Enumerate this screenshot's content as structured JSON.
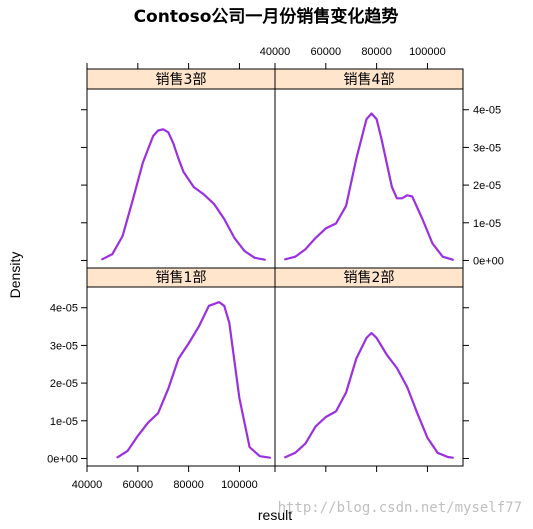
{
  "chart_data": {
    "type": "density-lattice",
    "title": "Contoso公司一月份销售变化趋势",
    "xlabel": "result",
    "ylabel": "Density",
    "xlim": [
      40000,
      114000
    ],
    "ylim": [
      -2e-06,
      4.55e-05
    ],
    "x_ticks": [
      40000,
      60000,
      80000,
      100000
    ],
    "x_tick_labels": [
      "40000",
      "60000",
      "80000",
      "100000"
    ],
    "y_ticks": [
      0,
      1e-05,
      2e-05,
      3e-05,
      4e-05
    ],
    "y_tick_labels": [
      "0e+00",
      "1e-05",
      "2e-05",
      "3e-05",
      "4e-05"
    ],
    "line_color": "#9b30e0",
    "strip_color": "#ffe5cc",
    "panels": [
      {
        "label": "销售3部",
        "position": "top-left",
        "x": [
          46000,
          50000,
          54000,
          58000,
          62000,
          66000,
          68000,
          70000,
          72000,
          74000,
          76000,
          78000,
          82000,
          86000,
          90000,
          94000,
          98000,
          102000,
          106000,
          110000
        ],
        "y": [
          3e-07,
          1.7e-06,
          6.5e-06,
          1.6e-05,
          2.6e-05,
          3.3e-05,
          3.45e-05,
          3.48e-05,
          3.4e-05,
          3.1e-05,
          2.7e-05,
          2.35e-05,
          1.95e-05,
          1.75e-05,
          1.5e-05,
          1.1e-05,
          6e-06,
          2.5e-06,
          7e-07,
          2e-07
        ]
      },
      {
        "label": "销售4部",
        "position": "top-right",
        "x": [
          44000,
          48000,
          52000,
          56000,
          60000,
          64000,
          68000,
          72000,
          76000,
          78000,
          80000,
          82000,
          86000,
          88000,
          90000,
          92000,
          94000,
          98000,
          102000,
          106000,
          110000
        ],
        "y": [
          3e-07,
          1e-06,
          3e-06,
          6e-06,
          8.5e-06,
          9.8e-06,
          1.45e-05,
          2.7e-05,
          3.75e-05,
          3.9e-05,
          3.75e-05,
          3.2e-05,
          1.95e-05,
          1.65e-05,
          1.65e-05,
          1.73e-05,
          1.7e-05,
          1.1e-05,
          4.5e-06,
          1e-06,
          2e-07
        ]
      },
      {
        "label": "销售1部",
        "position": "bottom-left",
        "x": [
          52000,
          56000,
          60000,
          64000,
          68000,
          72000,
          76000,
          80000,
          84000,
          88000,
          92000,
          94000,
          96000,
          100000,
          104000,
          108000,
          112000
        ],
        "y": [
          3e-07,
          2e-06,
          6e-06,
          9.5e-06,
          1.2e-05,
          1.85e-05,
          2.65e-05,
          3.05e-05,
          3.5e-05,
          4.05e-05,
          4.15e-05,
          4.05e-05,
          3.6e-05,
          1.6e-05,
          3e-06,
          6e-07,
          2e-07
        ]
      },
      {
        "label": "销售2部",
        "position": "bottom-right",
        "x": [
          44000,
          48000,
          52000,
          56000,
          60000,
          64000,
          68000,
          72000,
          76000,
          78000,
          80000,
          84000,
          88000,
          92000,
          96000,
          100000,
          104000,
          108000,
          110000
        ],
        "y": [
          3e-07,
          1.5e-06,
          4e-06,
          8.5e-06,
          1.1e-05,
          1.25e-05,
          1.75e-05,
          2.65e-05,
          3.2e-05,
          3.33e-05,
          3.2e-05,
          2.75e-05,
          2.4e-05,
          1.9e-05,
          1.2e-05,
          5.5e-06,
          1.5e-06,
          4e-07,
          2e-07
        ]
      }
    ]
  },
  "watermark": "http://blog.csdn.net/myself77"
}
